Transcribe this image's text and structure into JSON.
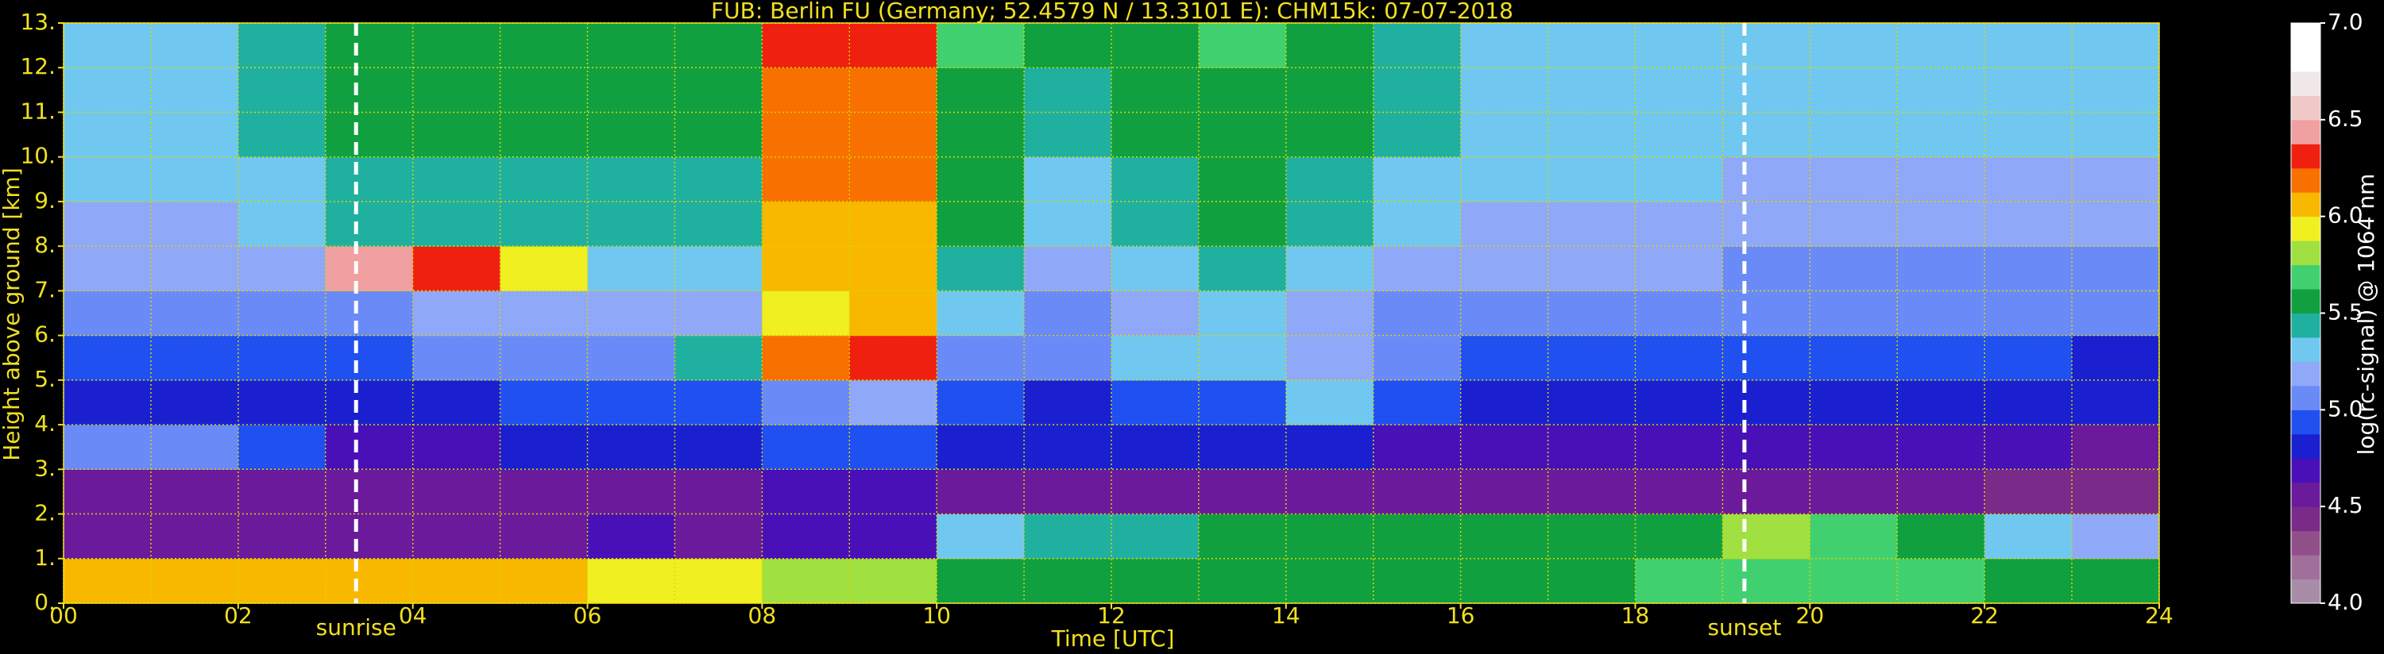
{
  "chart_data": {
    "type": "heatmap",
    "title": "FUB: Berlin FU (Germany; 52.4579 N / 13.3101 E):    CHM15k: 07-07-2018",
    "x_label": "Time [UTC]",
    "y_label": "Height above ground [km]",
    "colorbar_label": "log(rc-signal) @ 1064 nm",
    "xlim": [
      0,
      24
    ],
    "ylim": [
      0,
      13
    ],
    "xticks": [
      {
        "value": 0,
        "label": "00"
      },
      {
        "value": 2,
        "label": "02"
      },
      {
        "value": 4,
        "label": "04"
      },
      {
        "value": 6,
        "label": "06"
      },
      {
        "value": 8,
        "label": "08"
      },
      {
        "value": 10,
        "label": "10"
      },
      {
        "value": 12,
        "label": "12"
      },
      {
        "value": 14,
        "label": "14"
      },
      {
        "value": 16,
        "label": "16"
      },
      {
        "value": 18,
        "label": "18"
      },
      {
        "value": 20,
        "label": "20"
      },
      {
        "value": 22,
        "label": "22"
      },
      {
        "value": 24,
        "label": "24"
      }
    ],
    "xminorticks": [
      1,
      3,
      5,
      7,
      9,
      11,
      13,
      15,
      17,
      19,
      21,
      23
    ],
    "yticks": [
      {
        "value": 0,
        "label": "0."
      },
      {
        "value": 1,
        "label": "1."
      },
      {
        "value": 2,
        "label": "2."
      },
      {
        "value": 3,
        "label": "3."
      },
      {
        "value": 4,
        "label": "4."
      },
      {
        "value": 5,
        "label": "5."
      },
      {
        "value": 6,
        "label": "6."
      },
      {
        "value": 7,
        "label": "7."
      },
      {
        "value": 8,
        "label": "8."
      },
      {
        "value": 9,
        "label": "9."
      },
      {
        "value": 10,
        "label": "10."
      },
      {
        "value": 11,
        "label": "11."
      },
      {
        "value": 12,
        "label": "12."
      },
      {
        "value": 13,
        "label": "13."
      }
    ],
    "grid": true,
    "grid_color": "#d8d800",
    "axis_color": "#f0e020",
    "x_bins": [
      0,
      1,
      2,
      3,
      4,
      5,
      6,
      7,
      8,
      9,
      10,
      11,
      12,
      13,
      14,
      15,
      16,
      17,
      18,
      19,
      20,
      21,
      22,
      23,
      24
    ],
    "y_bins": [
      0,
      1,
      2,
      3,
      4,
      5,
      6,
      7,
      8,
      9,
      10,
      11,
      12,
      13
    ],
    "z": [
      [
        6.0,
        6.0,
        6.0,
        6.1,
        6.1,
        6.0,
        5.9,
        5.9,
        5.85,
        5.8,
        5.6,
        5.5,
        5.5,
        5.5,
        5.5,
        5.5,
        5.55,
        5.6,
        5.65,
        5.7,
        5.7,
        5.65,
        5.6,
        5.6
      ],
      [
        4.6,
        4.6,
        4.55,
        4.55,
        4.6,
        4.6,
        4.7,
        4.6,
        4.65,
        4.65,
        5.35,
        5.4,
        5.45,
        5.5,
        5.5,
        5.5,
        5.5,
        5.55,
        5.6,
        5.75,
        5.7,
        5.6,
        5.3,
        5.2
      ],
      [
        4.6,
        4.55,
        4.55,
        4.55,
        4.55,
        4.55,
        4.6,
        4.6,
        4.65,
        4.7,
        4.6,
        4.55,
        4.55,
        4.6,
        4.6,
        4.55,
        4.55,
        4.55,
        4.55,
        4.55,
        4.5,
        4.5,
        4.45,
        4.4
      ],
      [
        5.0,
        5.0,
        4.9,
        4.7,
        4.7,
        4.75,
        4.75,
        4.8,
        4.9,
        4.95,
        4.8,
        4.75,
        4.75,
        4.8,
        4.8,
        4.7,
        4.7,
        4.7,
        4.7,
        4.7,
        4.7,
        4.7,
        4.7,
        4.6
      ],
      [
        4.8,
        4.8,
        4.8,
        4.8,
        4.85,
        4.9,
        4.9,
        4.95,
        5.1,
        5.2,
        4.9,
        4.85,
        4.9,
        4.95,
        5.3,
        4.9,
        4.8,
        4.8,
        4.8,
        4.8,
        4.8,
        4.8,
        4.8,
        4.75
      ],
      [
        4.9,
        4.9,
        4.9,
        4.9,
        5.0,
        5.0,
        5.0,
        5.4,
        6.2,
        6.3,
        5.1,
        5.0,
        5.3,
        5.3,
        5.2,
        5.0,
        4.95,
        4.95,
        4.95,
        4.9,
        4.9,
        4.9,
        4.9,
        4.85
      ],
      [
        5.05,
        5.05,
        5.05,
        5.1,
        5.15,
        5.2,
        5.2,
        5.2,
        5.9,
        6.0,
        5.3,
        5.1,
        5.2,
        5.3,
        5.2,
        5.1,
        5.05,
        5.05,
        5.05,
        5.0,
        5.0,
        5.0,
        5.0,
        5.0
      ],
      [
        5.15,
        5.15,
        5.2,
        6.4,
        6.3,
        5.9,
        5.3,
        5.3,
        6.0,
        6.1,
        5.4,
        5.2,
        5.3,
        5.4,
        5.3,
        5.2,
        5.15,
        5.15,
        5.15,
        5.1,
        5.1,
        5.1,
        5.1,
        5.1
      ],
      [
        5.2,
        5.2,
        5.3,
        5.4,
        5.4,
        5.4,
        5.4,
        5.4,
        6.1,
        6.1,
        5.5,
        5.3,
        5.4,
        5.5,
        5.4,
        5.3,
        5.2,
        5.2,
        5.2,
        5.15,
        5.15,
        5.15,
        5.15,
        5.15
      ],
      [
        5.25,
        5.25,
        5.35,
        5.45,
        5.45,
        5.45,
        5.45,
        5.45,
        6.15,
        6.15,
        5.55,
        5.35,
        5.45,
        5.55,
        5.45,
        5.35,
        5.25,
        5.25,
        5.25,
        5.2,
        5.2,
        5.2,
        5.2,
        5.2
      ],
      [
        5.3,
        5.3,
        5.4,
        5.5,
        5.5,
        5.5,
        5.5,
        5.5,
        6.2,
        6.2,
        5.6,
        5.4,
        5.5,
        5.6,
        5.5,
        5.4,
        5.3,
        5.3,
        5.3,
        5.25,
        5.25,
        5.25,
        5.25,
        5.25
      ],
      [
        5.3,
        5.3,
        5.4,
        5.55,
        5.55,
        5.55,
        5.55,
        5.55,
        6.2,
        6.2,
        5.6,
        5.45,
        5.55,
        5.6,
        5.55,
        5.4,
        5.3,
        5.3,
        5.3,
        5.3,
        5.3,
        5.3,
        5.3,
        5.3
      ],
      [
        5.35,
        5.35,
        5.45,
        5.6,
        5.6,
        5.6,
        5.6,
        5.6,
        6.25,
        6.25,
        5.65,
        5.5,
        5.6,
        5.65,
        5.6,
        5.45,
        5.35,
        5.35,
        5.35,
        5.3,
        5.3,
        5.3,
        5.3,
        5.3
      ]
    ],
    "clim": [
      4.0,
      7.0
    ],
    "colorbar_ticks": [
      {
        "value": 4.0,
        "label": "4.0"
      },
      {
        "value": 4.5,
        "label": "4.5"
      },
      {
        "value": 5.0,
        "label": "5.0"
      },
      {
        "value": 5.5,
        "label": "5.5"
      },
      {
        "value": 6.0,
        "label": "6.0"
      },
      {
        "value": 6.5,
        "label": "6.5"
      },
      {
        "value": 7.0,
        "label": "7.0"
      }
    ],
    "colormap": [
      "#a88ca8",
      "#a0709a",
      "#904f8a",
      "#7a2a88",
      "#6a1a9a",
      "#4a10b8",
      "#1a20d0",
      "#2050f0",
      "#6a8af8",
      "#90a8f8",
      "#70c8f0",
      "#20b0a0",
      "#10a040",
      "#40d070",
      "#a0e040",
      "#f0f020",
      "#f8b800",
      "#f87000",
      "#f02010",
      "#f0a0a0",
      "#f0c8c8",
      "#f0e8e8",
      "#ffffff",
      "#ffffff"
    ],
    "annotations": [
      {
        "x": 3.35,
        "label": "sunrise"
      },
      {
        "x": 19.25,
        "label": "sunset"
      }
    ]
  }
}
